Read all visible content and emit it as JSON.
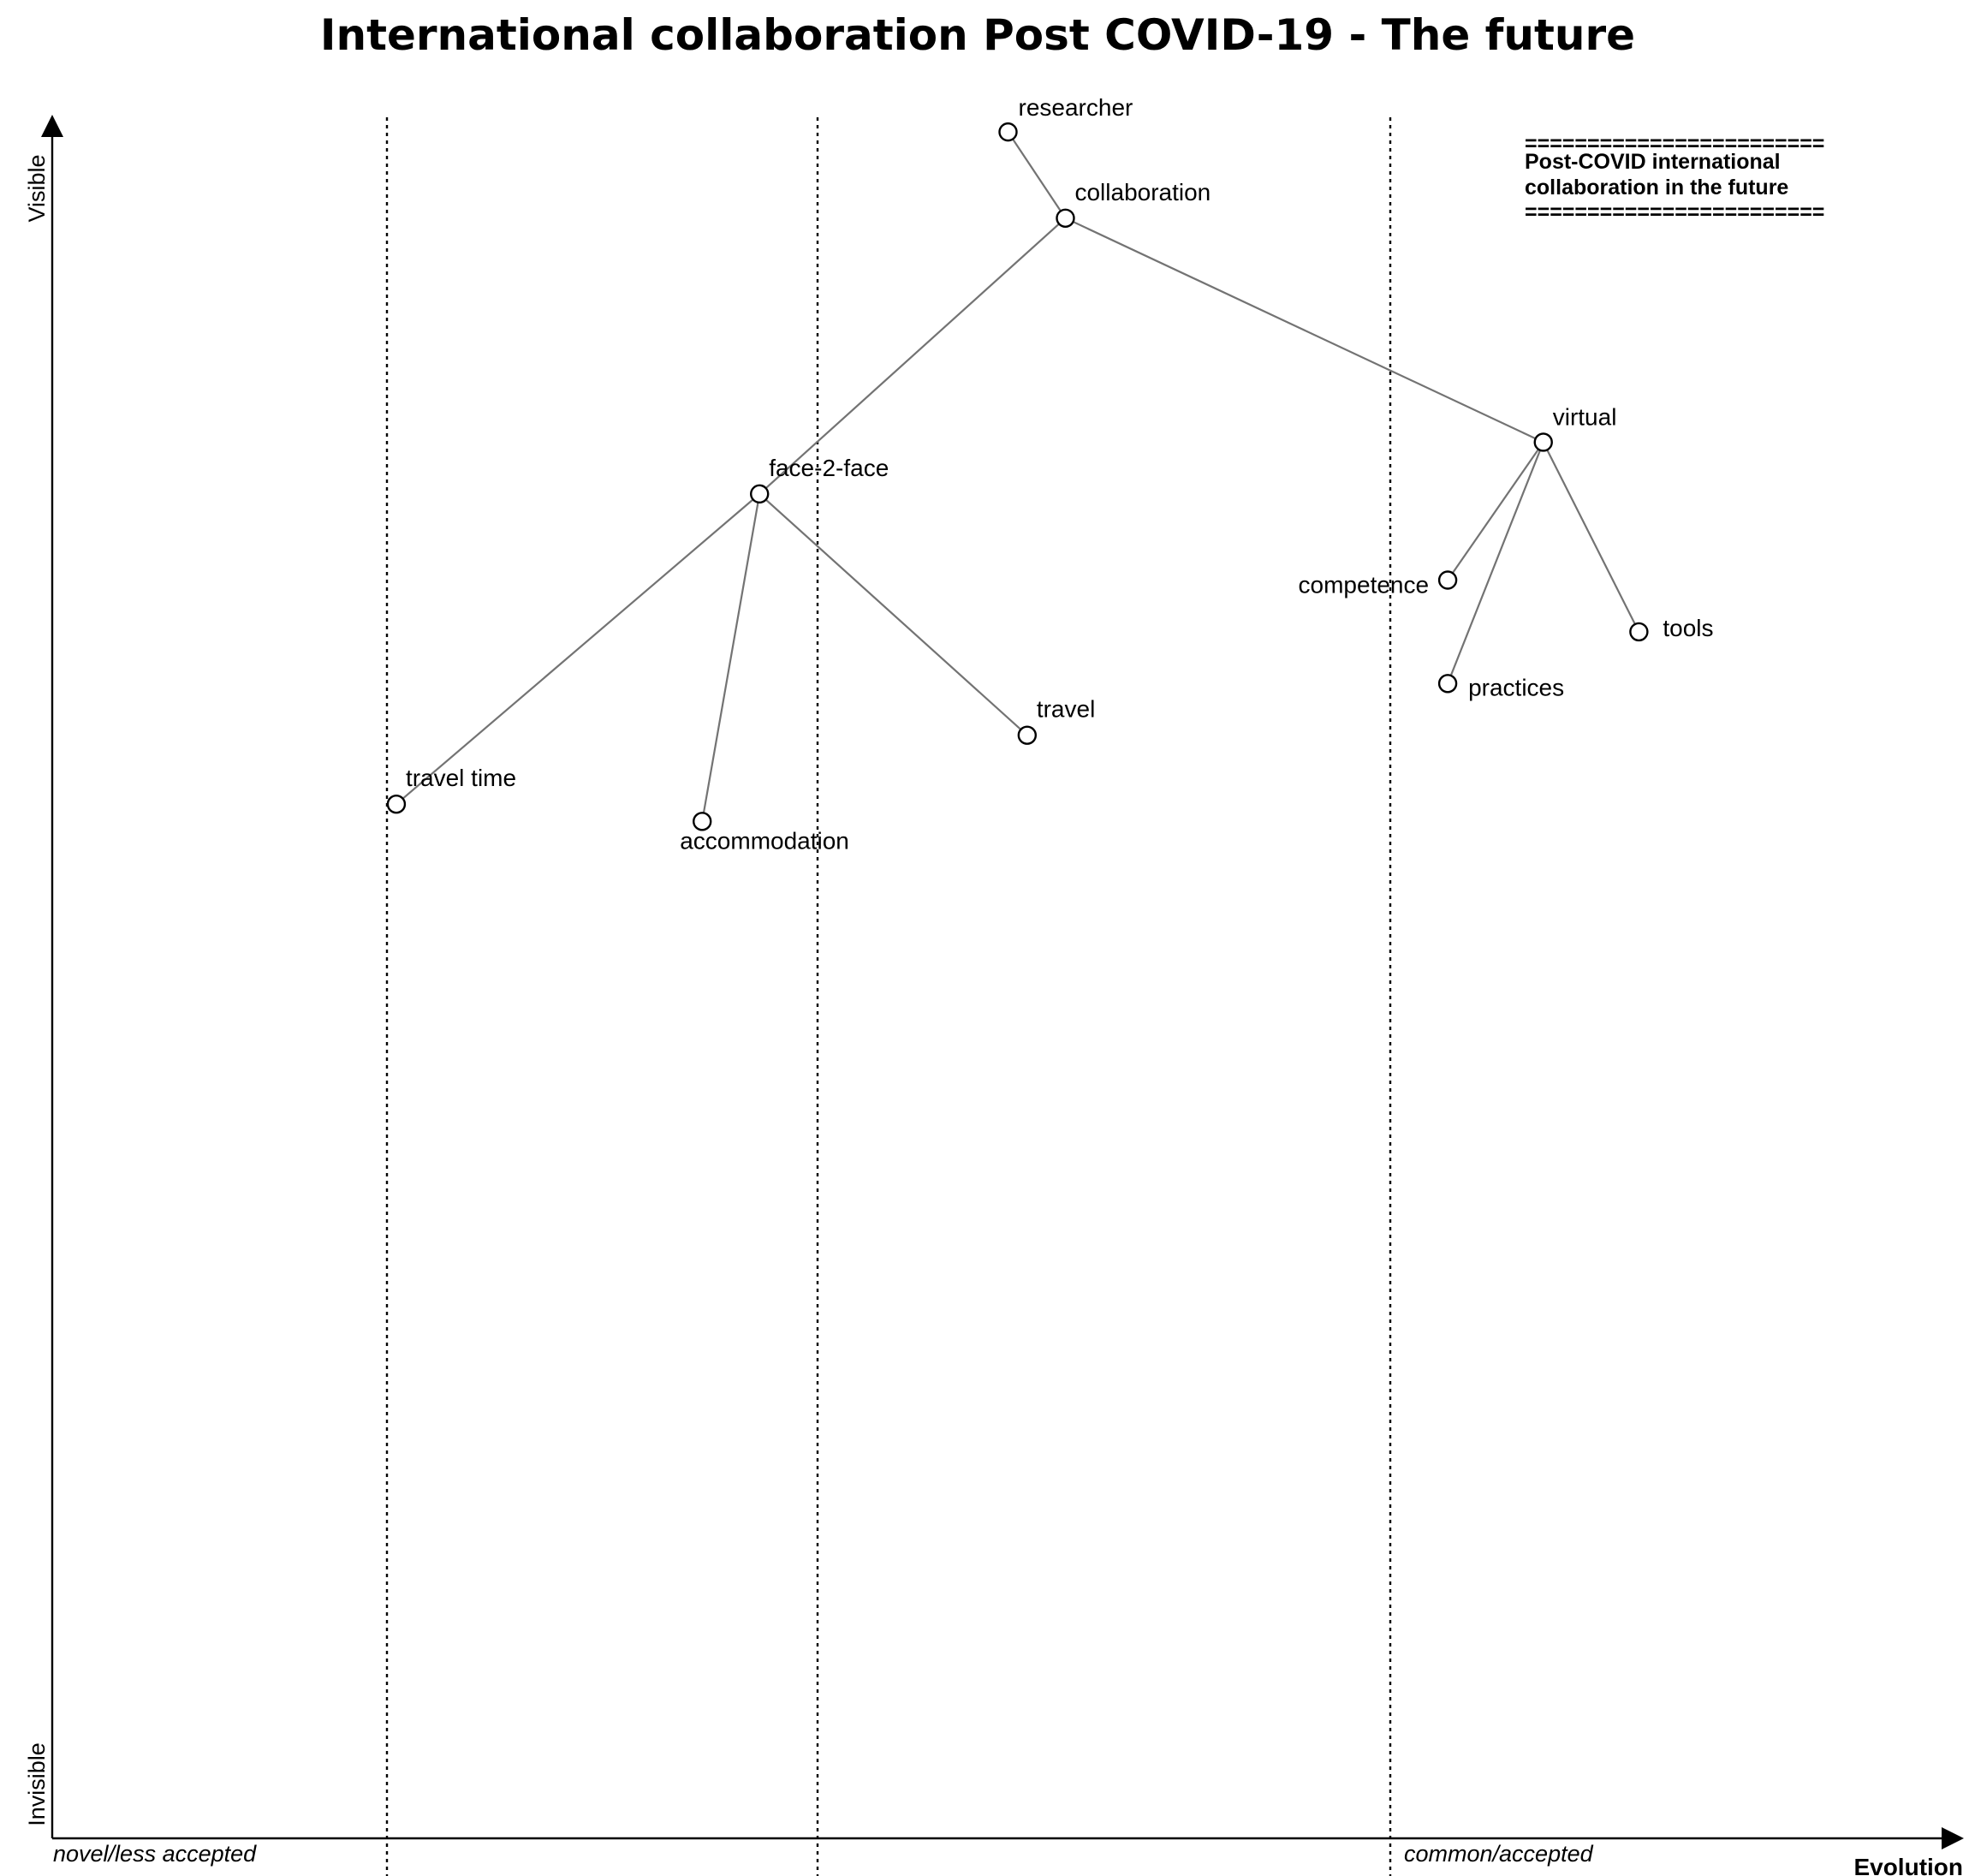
{
  "title": "International collaboration Post COVID-19 - The future",
  "axes": {
    "y_top": "Visible",
    "y_bottom": "Invisible",
    "x_end": "Evolution"
  },
  "stages": {
    "left": "novel/less accepted",
    "right": "common/accepted"
  },
  "note": {
    "rule_top": "========================",
    "line1": "Post-COVID international",
    "line2": "collaboration in the future",
    "rule_bottom": "========================"
  },
  "components": [
    {
      "id": "researcher",
      "label": "researcher",
      "visibility": 0.99,
      "maturity": 0.5
    },
    {
      "id": "collaboration",
      "label": "collaboration",
      "visibility": 0.94,
      "maturity": 0.53
    },
    {
      "id": "face-2-face",
      "label": "face-2-face",
      "visibility": 0.78,
      "maturity": 0.37
    },
    {
      "id": "virtual",
      "label": "virtual",
      "visibility": 0.81,
      "maturity": 0.78
    },
    {
      "id": "competence",
      "label": "competence",
      "visibility": 0.73,
      "maturity": 0.73
    },
    {
      "id": "tools",
      "label": "tools",
      "visibility": 0.7,
      "maturity": 0.83
    },
    {
      "id": "practices",
      "label": "practices",
      "visibility": 0.67,
      "maturity": 0.73
    },
    {
      "id": "travel",
      "label": "travel",
      "visibility": 0.64,
      "maturity": 0.51
    },
    {
      "id": "travel-time",
      "label": "travel time",
      "visibility": 0.6,
      "maturity": 0.18
    },
    {
      "id": "accommodation",
      "label": "accommodation",
      "visibility": 0.59,
      "maturity": 0.34
    }
  ],
  "links": [
    [
      "researcher",
      "collaboration"
    ],
    [
      "collaboration",
      "face-2-face"
    ],
    [
      "collaboration",
      "virtual"
    ],
    [
      "face-2-face",
      "travel-time"
    ],
    [
      "face-2-face",
      "accommodation"
    ],
    [
      "face-2-face",
      "travel"
    ],
    [
      "virtual",
      "competence"
    ],
    [
      "virtual",
      "practices"
    ],
    [
      "virtual",
      "tools"
    ]
  ]
}
